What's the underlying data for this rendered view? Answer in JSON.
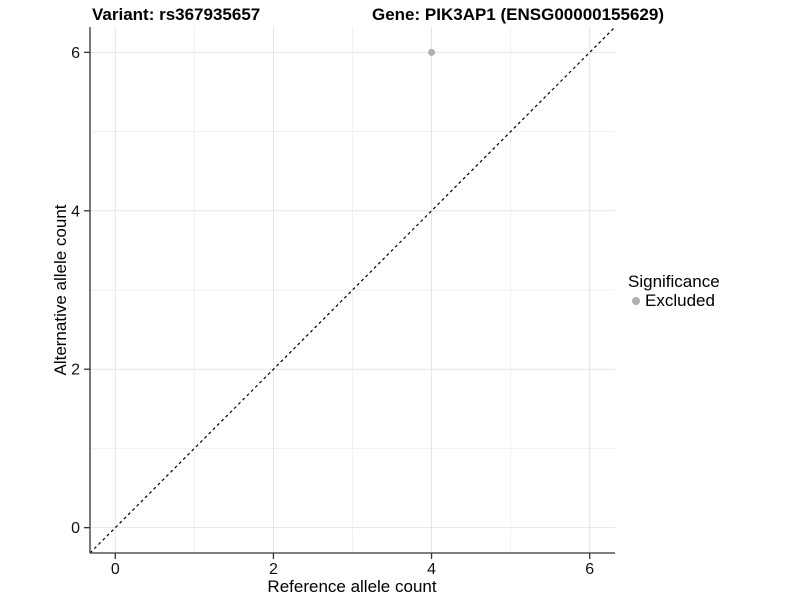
{
  "chart_data": {
    "type": "scatter",
    "title_left": "Variant: rs367935657",
    "title_right": "Gene: PIK3AP1 (ENSG00000155629)",
    "xlabel": "Reference allele count",
    "ylabel": "Alternative allele count",
    "xlim": [
      -0.32,
      6.32
    ],
    "ylim": [
      -0.32,
      6.32
    ],
    "xticks": [
      0,
      2,
      4,
      6
    ],
    "yticks": [
      0,
      2,
      4,
      6
    ],
    "minor_gridlines_x": [
      1,
      3,
      5
    ],
    "minor_gridlines_y": [
      1,
      3,
      5
    ],
    "grid": true,
    "series": [
      {
        "name": "Excluded",
        "color": "#b0b0b0",
        "points": [
          {
            "x": 4,
            "y": 6
          }
        ]
      }
    ],
    "reference_line": {
      "type": "identity",
      "equation": "y = x",
      "style": "dashed",
      "color": "#000000"
    },
    "legend": {
      "title": "Significance",
      "position": "right",
      "entries": [
        {
          "label": "Excluded",
          "color": "#b0b0b0"
        }
      ]
    },
    "colors": {
      "grid_major": "#e4e4e4",
      "grid_minor": "#f1f1f1",
      "axis": "#333333",
      "tick_text": "#111111",
      "background": "#ffffff"
    }
  }
}
